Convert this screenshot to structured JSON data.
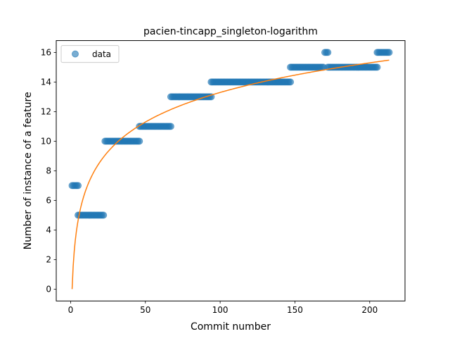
{
  "chart_data": {
    "type": "scatter",
    "title": "pacien-tincapp_singleton-logarithm",
    "xlabel": "Commit number",
    "ylabel": "Number of instance of a feature",
    "xlim": [
      -9.6,
      223.6
    ],
    "ylim": [
      -0.8,
      16.8
    ],
    "x_ticks": [
      0,
      50,
      100,
      150,
      200
    ],
    "y_ticks": [
      0,
      2,
      4,
      6,
      8,
      10,
      12,
      14,
      16
    ],
    "grid": false,
    "legend": {
      "position": "top-left",
      "entries": [
        "data"
      ]
    },
    "series": [
      {
        "name": "data",
        "kind": "scatter",
        "color": "#1f77b4",
        "alpha": 0.6,
        "segments": [
          {
            "x_start": 1,
            "x_end": 5,
            "y": 7
          },
          {
            "x_start": 5,
            "x_end": 22,
            "y": 5
          },
          {
            "x_start": 23,
            "x_end": 46,
            "y": 10
          },
          {
            "x_start": 46,
            "x_end": 67,
            "y": 11
          },
          {
            "x_start": 67,
            "x_end": 94,
            "y": 13
          },
          {
            "x_start": 94,
            "x_end": 147,
            "y": 14
          },
          {
            "x_start": 147,
            "x_end": 169,
            "y": 15
          },
          {
            "x_start": 170,
            "x_end": 172,
            "y": 16
          },
          {
            "x_start": 172,
            "x_end": 205,
            "y": 15
          },
          {
            "x_start": 205,
            "x_end": 213,
            "y": 16
          }
        ]
      },
      {
        "kind": "line",
        "color": "#ff7f0e",
        "fit": {
          "form": "a*ln(x)",
          "a": 2.887,
          "x_start": 1,
          "x_end": 213
        }
      }
    ]
  }
}
